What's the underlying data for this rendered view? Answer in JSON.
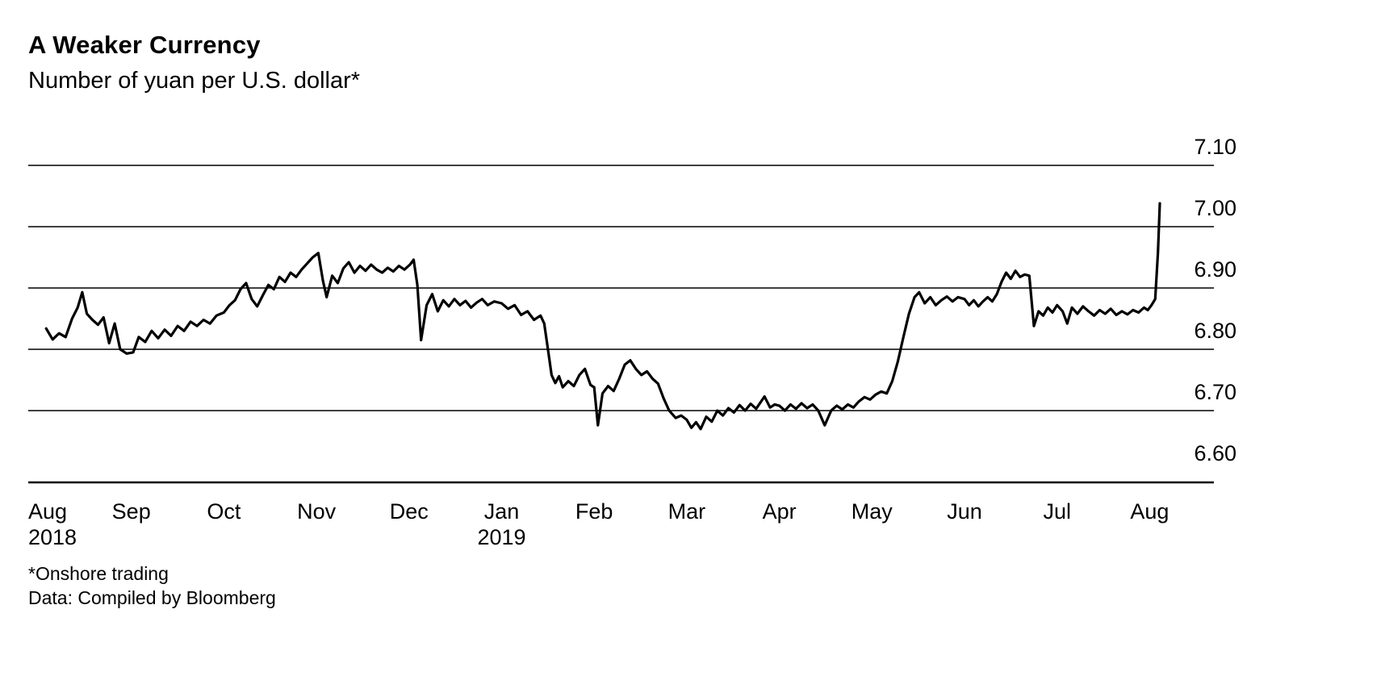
{
  "header": {
    "title": "A Weaker Currency",
    "subtitle": "Number of yuan per U.S. dollar*"
  },
  "footer": {
    "note": "*Onshore trading",
    "source": "Data: Compiled by Bloomberg"
  },
  "chart_data": {
    "type": "line",
    "title": "A Weaker Currency",
    "subtitle": "Number of yuan per U.S. dollar*",
    "xlabel": "",
    "ylabel": "Number of yuan per U.S. dollar (onshore trading)",
    "x_unit": "months since Aug 2018",
    "xlim": [
      0,
      12.2
    ],
    "ylim": [
      6.6,
      7.1
    ],
    "grid": "horizontal",
    "legend": "none",
    "line_color": "#000000",
    "yticks": [
      {
        "label": "7.10",
        "value": 7.1
      },
      {
        "label": "7.00",
        "value": 7.0
      },
      {
        "label": "6.90",
        "value": 6.9
      },
      {
        "label": "6.80",
        "value": 6.8
      },
      {
        "label": "6.70",
        "value": 6.7
      },
      {
        "label": "6.60",
        "value": 6.6
      }
    ],
    "xticks": [
      {
        "label": "Aug",
        "year": "2018"
      },
      {
        "label": "Sep"
      },
      {
        "label": "Oct"
      },
      {
        "label": "Nov"
      },
      {
        "label": "Dec"
      },
      {
        "label": "Jan",
        "year": "2019"
      },
      {
        "label": "Feb"
      },
      {
        "label": "Mar"
      },
      {
        "label": "Apr"
      },
      {
        "label": "May"
      },
      {
        "label": "Jun"
      },
      {
        "label": "Jul"
      },
      {
        "label": "Aug"
      }
    ],
    "series": [
      {
        "name": "Yuan per U.S. dollar",
        "color": "#000000",
        "points": [
          [
            0.08,
            6.834
          ],
          [
            0.15,
            6.816
          ],
          [
            0.22,
            6.826
          ],
          [
            0.29,
            6.82
          ],
          [
            0.36,
            6.85
          ],
          [
            0.42,
            6.868
          ],
          [
            0.47,
            6.893
          ],
          [
            0.52,
            6.858
          ],
          [
            0.58,
            6.848
          ],
          [
            0.64,
            6.84
          ],
          [
            0.7,
            6.852
          ],
          [
            0.76,
            6.81
          ],
          [
            0.82,
            6.842
          ],
          [
            0.88,
            6.8
          ],
          [
            0.95,
            6.793
          ],
          [
            1.02,
            6.795
          ],
          [
            1.08,
            6.82
          ],
          [
            1.15,
            6.812
          ],
          [
            1.22,
            6.83
          ],
          [
            1.29,
            6.818
          ],
          [
            1.36,
            6.832
          ],
          [
            1.43,
            6.822
          ],
          [
            1.5,
            6.838
          ],
          [
            1.57,
            6.83
          ],
          [
            1.64,
            6.845
          ],
          [
            1.71,
            6.838
          ],
          [
            1.78,
            6.848
          ],
          [
            1.85,
            6.842
          ],
          [
            1.92,
            6.855
          ],
          [
            2.0,
            6.86
          ],
          [
            2.06,
            6.872
          ],
          [
            2.12,
            6.88
          ],
          [
            2.18,
            6.898
          ],
          [
            2.24,
            6.908
          ],
          [
            2.3,
            6.882
          ],
          [
            2.36,
            6.87
          ],
          [
            2.42,
            6.888
          ],
          [
            2.48,
            6.905
          ],
          [
            2.54,
            6.898
          ],
          [
            2.6,
            6.918
          ],
          [
            2.66,
            6.91
          ],
          [
            2.72,
            6.925
          ],
          [
            2.78,
            6.918
          ],
          [
            2.84,
            6.93
          ],
          [
            2.9,
            6.94
          ],
          [
            2.96,
            6.95
          ],
          [
            3.02,
            6.957
          ],
          [
            3.07,
            6.912
          ],
          [
            3.11,
            6.885
          ],
          [
            3.17,
            6.92
          ],
          [
            3.23,
            6.908
          ],
          [
            3.29,
            6.932
          ],
          [
            3.35,
            6.942
          ],
          [
            3.41,
            6.925
          ],
          [
            3.47,
            6.936
          ],
          [
            3.53,
            6.928
          ],
          [
            3.59,
            6.938
          ],
          [
            3.65,
            6.93
          ],
          [
            3.71,
            6.925
          ],
          [
            3.77,
            6.933
          ],
          [
            3.83,
            6.927
          ],
          [
            3.89,
            6.936
          ],
          [
            3.95,
            6.93
          ],
          [
            4.01,
            6.938
          ],
          [
            4.05,
            6.946
          ],
          [
            4.09,
            6.905
          ],
          [
            4.13,
            6.815
          ],
          [
            4.19,
            6.872
          ],
          [
            4.25,
            6.89
          ],
          [
            4.31,
            6.862
          ],
          [
            4.37,
            6.88
          ],
          [
            4.43,
            6.87
          ],
          [
            4.49,
            6.882
          ],
          [
            4.55,
            6.872
          ],
          [
            4.61,
            6.879
          ],
          [
            4.67,
            6.868
          ],
          [
            4.73,
            6.876
          ],
          [
            4.79,
            6.882
          ],
          [
            4.85,
            6.872
          ],
          [
            4.92,
            6.878
          ],
          [
            5.0,
            6.875
          ],
          [
            5.07,
            6.866
          ],
          [
            5.14,
            6.872
          ],
          [
            5.21,
            6.856
          ],
          [
            5.28,
            6.862
          ],
          [
            5.35,
            6.848
          ],
          [
            5.42,
            6.855
          ],
          [
            5.46,
            6.842
          ],
          [
            5.5,
            6.8
          ],
          [
            5.54,
            6.758
          ],
          [
            5.58,
            6.745
          ],
          [
            5.62,
            6.756
          ],
          [
            5.66,
            6.738
          ],
          [
            5.72,
            6.748
          ],
          [
            5.78,
            6.74
          ],
          [
            5.84,
            6.758
          ],
          [
            5.9,
            6.768
          ],
          [
            5.96,
            6.742
          ],
          [
            6.0,
            6.738
          ],
          [
            6.04,
            6.676
          ],
          [
            6.09,
            6.728
          ],
          [
            6.15,
            6.74
          ],
          [
            6.21,
            6.732
          ],
          [
            6.27,
            6.752
          ],
          [
            6.33,
            6.775
          ],
          [
            6.39,
            6.782
          ],
          [
            6.45,
            6.768
          ],
          [
            6.51,
            6.758
          ],
          [
            6.57,
            6.764
          ],
          [
            6.63,
            6.752
          ],
          [
            6.69,
            6.744
          ],
          [
            6.75,
            6.72
          ],
          [
            6.81,
            6.7
          ],
          [
            6.88,
            6.688
          ],
          [
            6.94,
            6.692
          ],
          [
            7.0,
            6.685
          ],
          [
            7.05,
            6.672
          ],
          [
            7.1,
            6.681
          ],
          [
            7.15,
            6.67
          ],
          [
            7.21,
            6.69
          ],
          [
            7.27,
            6.682
          ],
          [
            7.33,
            6.7
          ],
          [
            7.39,
            6.692
          ],
          [
            7.45,
            6.704
          ],
          [
            7.51,
            6.697
          ],
          [
            7.57,
            6.709
          ],
          [
            7.63,
            6.7
          ],
          [
            7.69,
            6.711
          ],
          [
            7.75,
            6.703
          ],
          [
            7.84,
            6.723
          ],
          [
            7.9,
            6.705
          ],
          [
            7.95,
            6.71
          ],
          [
            8.0,
            6.708
          ],
          [
            8.06,
            6.7
          ],
          [
            8.12,
            6.71
          ],
          [
            8.18,
            6.703
          ],
          [
            8.24,
            6.712
          ],
          [
            8.3,
            6.704
          ],
          [
            8.36,
            6.71
          ],
          [
            8.42,
            6.7
          ],
          [
            8.49,
            6.676
          ],
          [
            8.56,
            6.7
          ],
          [
            8.62,
            6.708
          ],
          [
            8.68,
            6.702
          ],
          [
            8.74,
            6.71
          ],
          [
            8.8,
            6.705
          ],
          [
            8.86,
            6.715
          ],
          [
            8.92,
            6.722
          ],
          [
            8.98,
            6.718
          ],
          [
            9.04,
            6.726
          ],
          [
            9.1,
            6.731
          ],
          [
            9.16,
            6.728
          ],
          [
            9.22,
            6.748
          ],
          [
            9.28,
            6.78
          ],
          [
            9.34,
            6.82
          ],
          [
            9.4,
            6.858
          ],
          [
            9.46,
            6.885
          ],
          [
            9.51,
            6.893
          ],
          [
            9.57,
            6.875
          ],
          [
            9.63,
            6.885
          ],
          [
            9.69,
            6.872
          ],
          [
            9.75,
            6.88
          ],
          [
            9.81,
            6.886
          ],
          [
            9.87,
            6.878
          ],
          [
            9.93,
            6.885
          ],
          [
            10.0,
            6.882
          ],
          [
            10.05,
            6.872
          ],
          [
            10.1,
            6.88
          ],
          [
            10.15,
            6.87
          ],
          [
            10.2,
            6.878
          ],
          [
            10.25,
            6.885
          ],
          [
            10.3,
            6.878
          ],
          [
            10.35,
            6.89
          ],
          [
            10.4,
            6.91
          ],
          [
            10.45,
            6.925
          ],
          [
            10.5,
            6.915
          ],
          [
            10.55,
            6.928
          ],
          [
            10.6,
            6.918
          ],
          [
            10.65,
            6.922
          ],
          [
            10.7,
            6.92
          ],
          [
            10.75,
            6.838
          ],
          [
            10.8,
            6.862
          ],
          [
            10.85,
            6.855
          ],
          [
            10.9,
            6.868
          ],
          [
            10.95,
            6.86
          ],
          [
            11.0,
            6.872
          ],
          [
            11.06,
            6.862
          ],
          [
            11.11,
            6.842
          ],
          [
            11.16,
            6.868
          ],
          [
            11.22,
            6.858
          ],
          [
            11.28,
            6.87
          ],
          [
            11.34,
            6.862
          ],
          [
            11.4,
            6.855
          ],
          [
            11.46,
            6.864
          ],
          [
            11.52,
            6.858
          ],
          [
            11.58,
            6.866
          ],
          [
            11.64,
            6.856
          ],
          [
            11.7,
            6.862
          ],
          [
            11.76,
            6.857
          ],
          [
            11.82,
            6.864
          ],
          [
            11.88,
            6.86
          ],
          [
            11.94,
            6.868
          ],
          [
            11.98,
            6.864
          ],
          [
            12.02,
            6.872
          ],
          [
            12.06,
            6.882
          ],
          [
            12.09,
            6.958
          ],
          [
            12.11,
            7.038
          ]
        ]
      }
    ]
  }
}
